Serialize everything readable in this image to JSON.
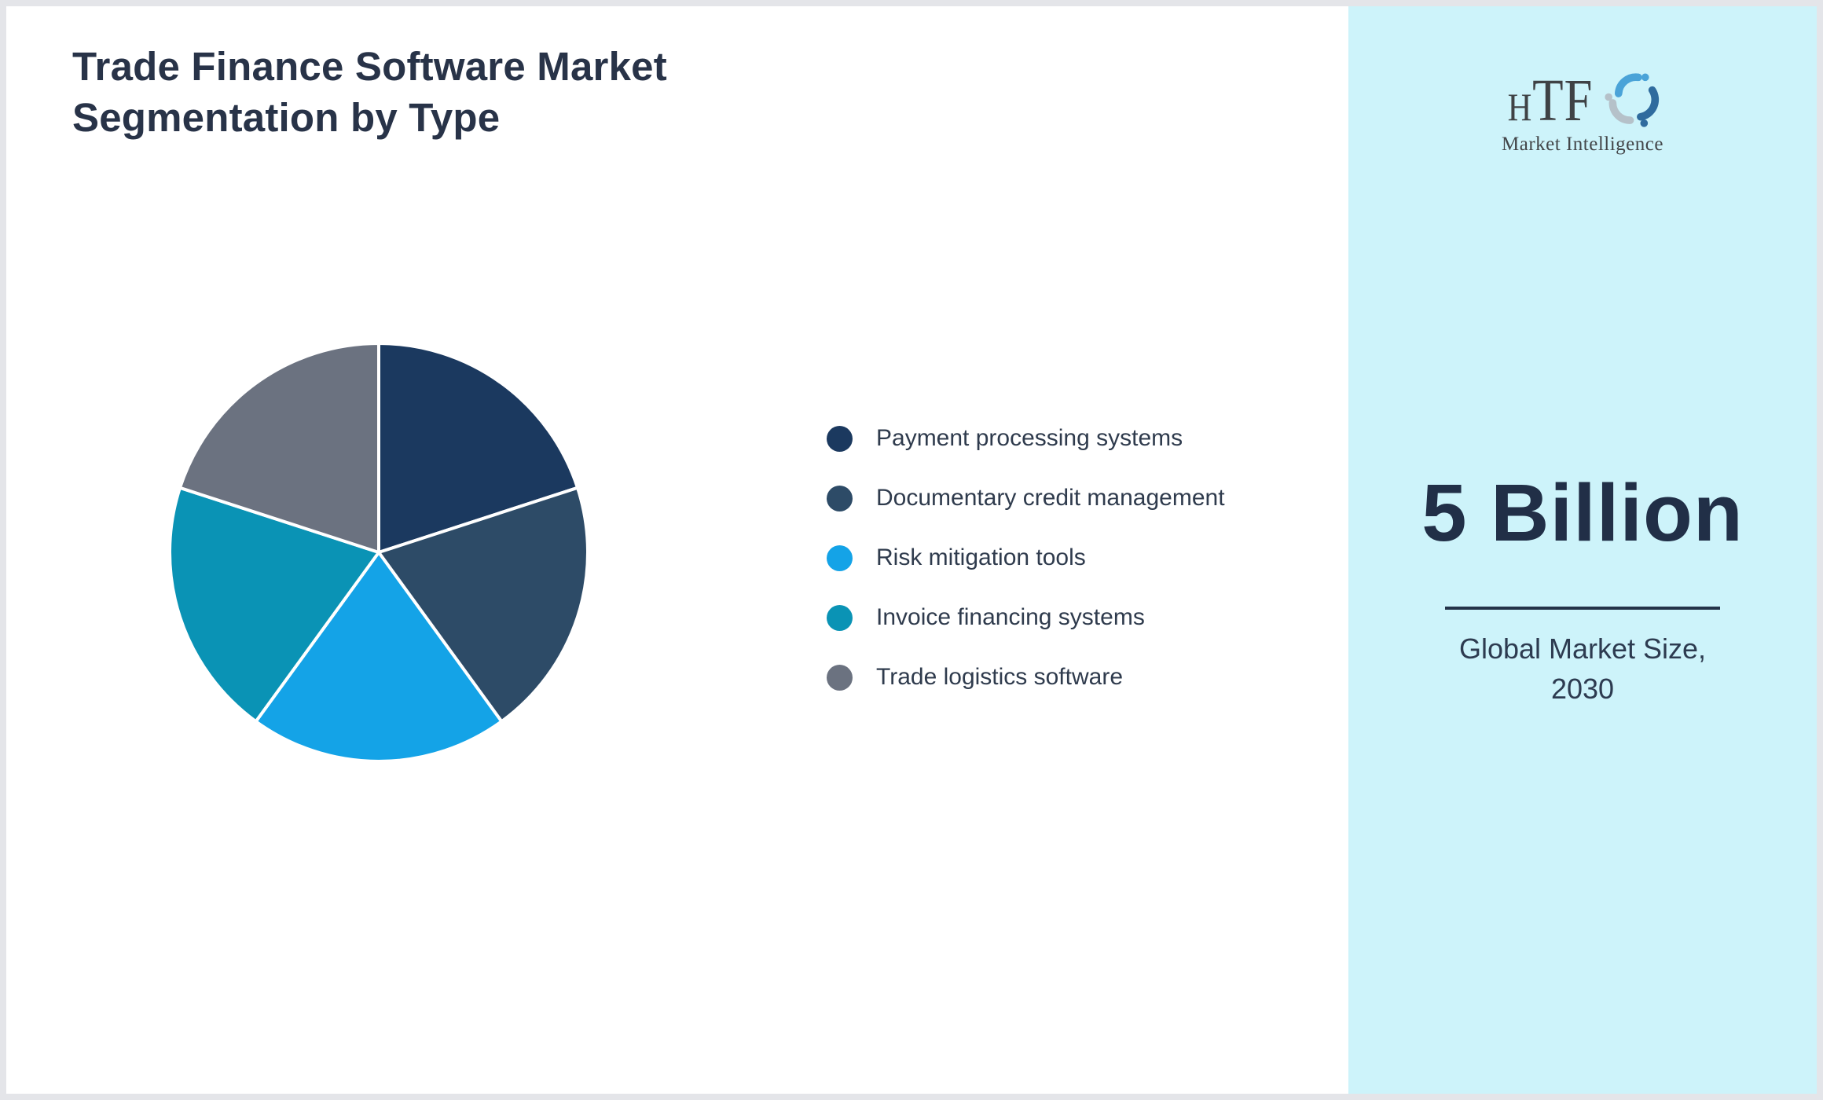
{
  "title": {
    "line1": "Trade Finance Software Market",
    "line2": "Segmentation by Type"
  },
  "chart_data": {
    "type": "pie",
    "title": "Trade Finance Software Market Segmentation by Type",
    "labels": [
      "Payment processing systems",
      "Documentary credit management",
      "Risk mitigation tools",
      "Invoice financing systems",
      "Trade logistics software"
    ],
    "values": [
      20,
      20,
      20,
      20,
      20
    ],
    "values_unit": "%",
    "values_note": "approximate; all five slices subtend equal 72-degree arcs",
    "colors": [
      "#1b395f",
      "#2d4b67",
      "#14a3e7",
      "#0a93b5",
      "#6b7280"
    ],
    "start_angle": "12 o'clock",
    "direction": "clockwise",
    "slice_gap_color": "#ffffff",
    "legend_position": "right"
  },
  "sidebar": {
    "background": "#cdf3fa",
    "logo": {
      "h": "H",
      "tf": "TF",
      "subtext": "Market Intelligence",
      "mark_colors": [
        "#4aa3d8",
        "#2f6b9e",
        "#b5c1c9"
      ]
    },
    "stat": {
      "value": "5 Billion",
      "caption_line1": "Global Market Size,",
      "caption_line2": "2030"
    }
  },
  "colors": {
    "frame_border": "#e4e5e9",
    "main_background": "#ffffff",
    "title_text": "#283348",
    "legend_text": "#2f3b4d",
    "stat_text": "#212f47"
  }
}
